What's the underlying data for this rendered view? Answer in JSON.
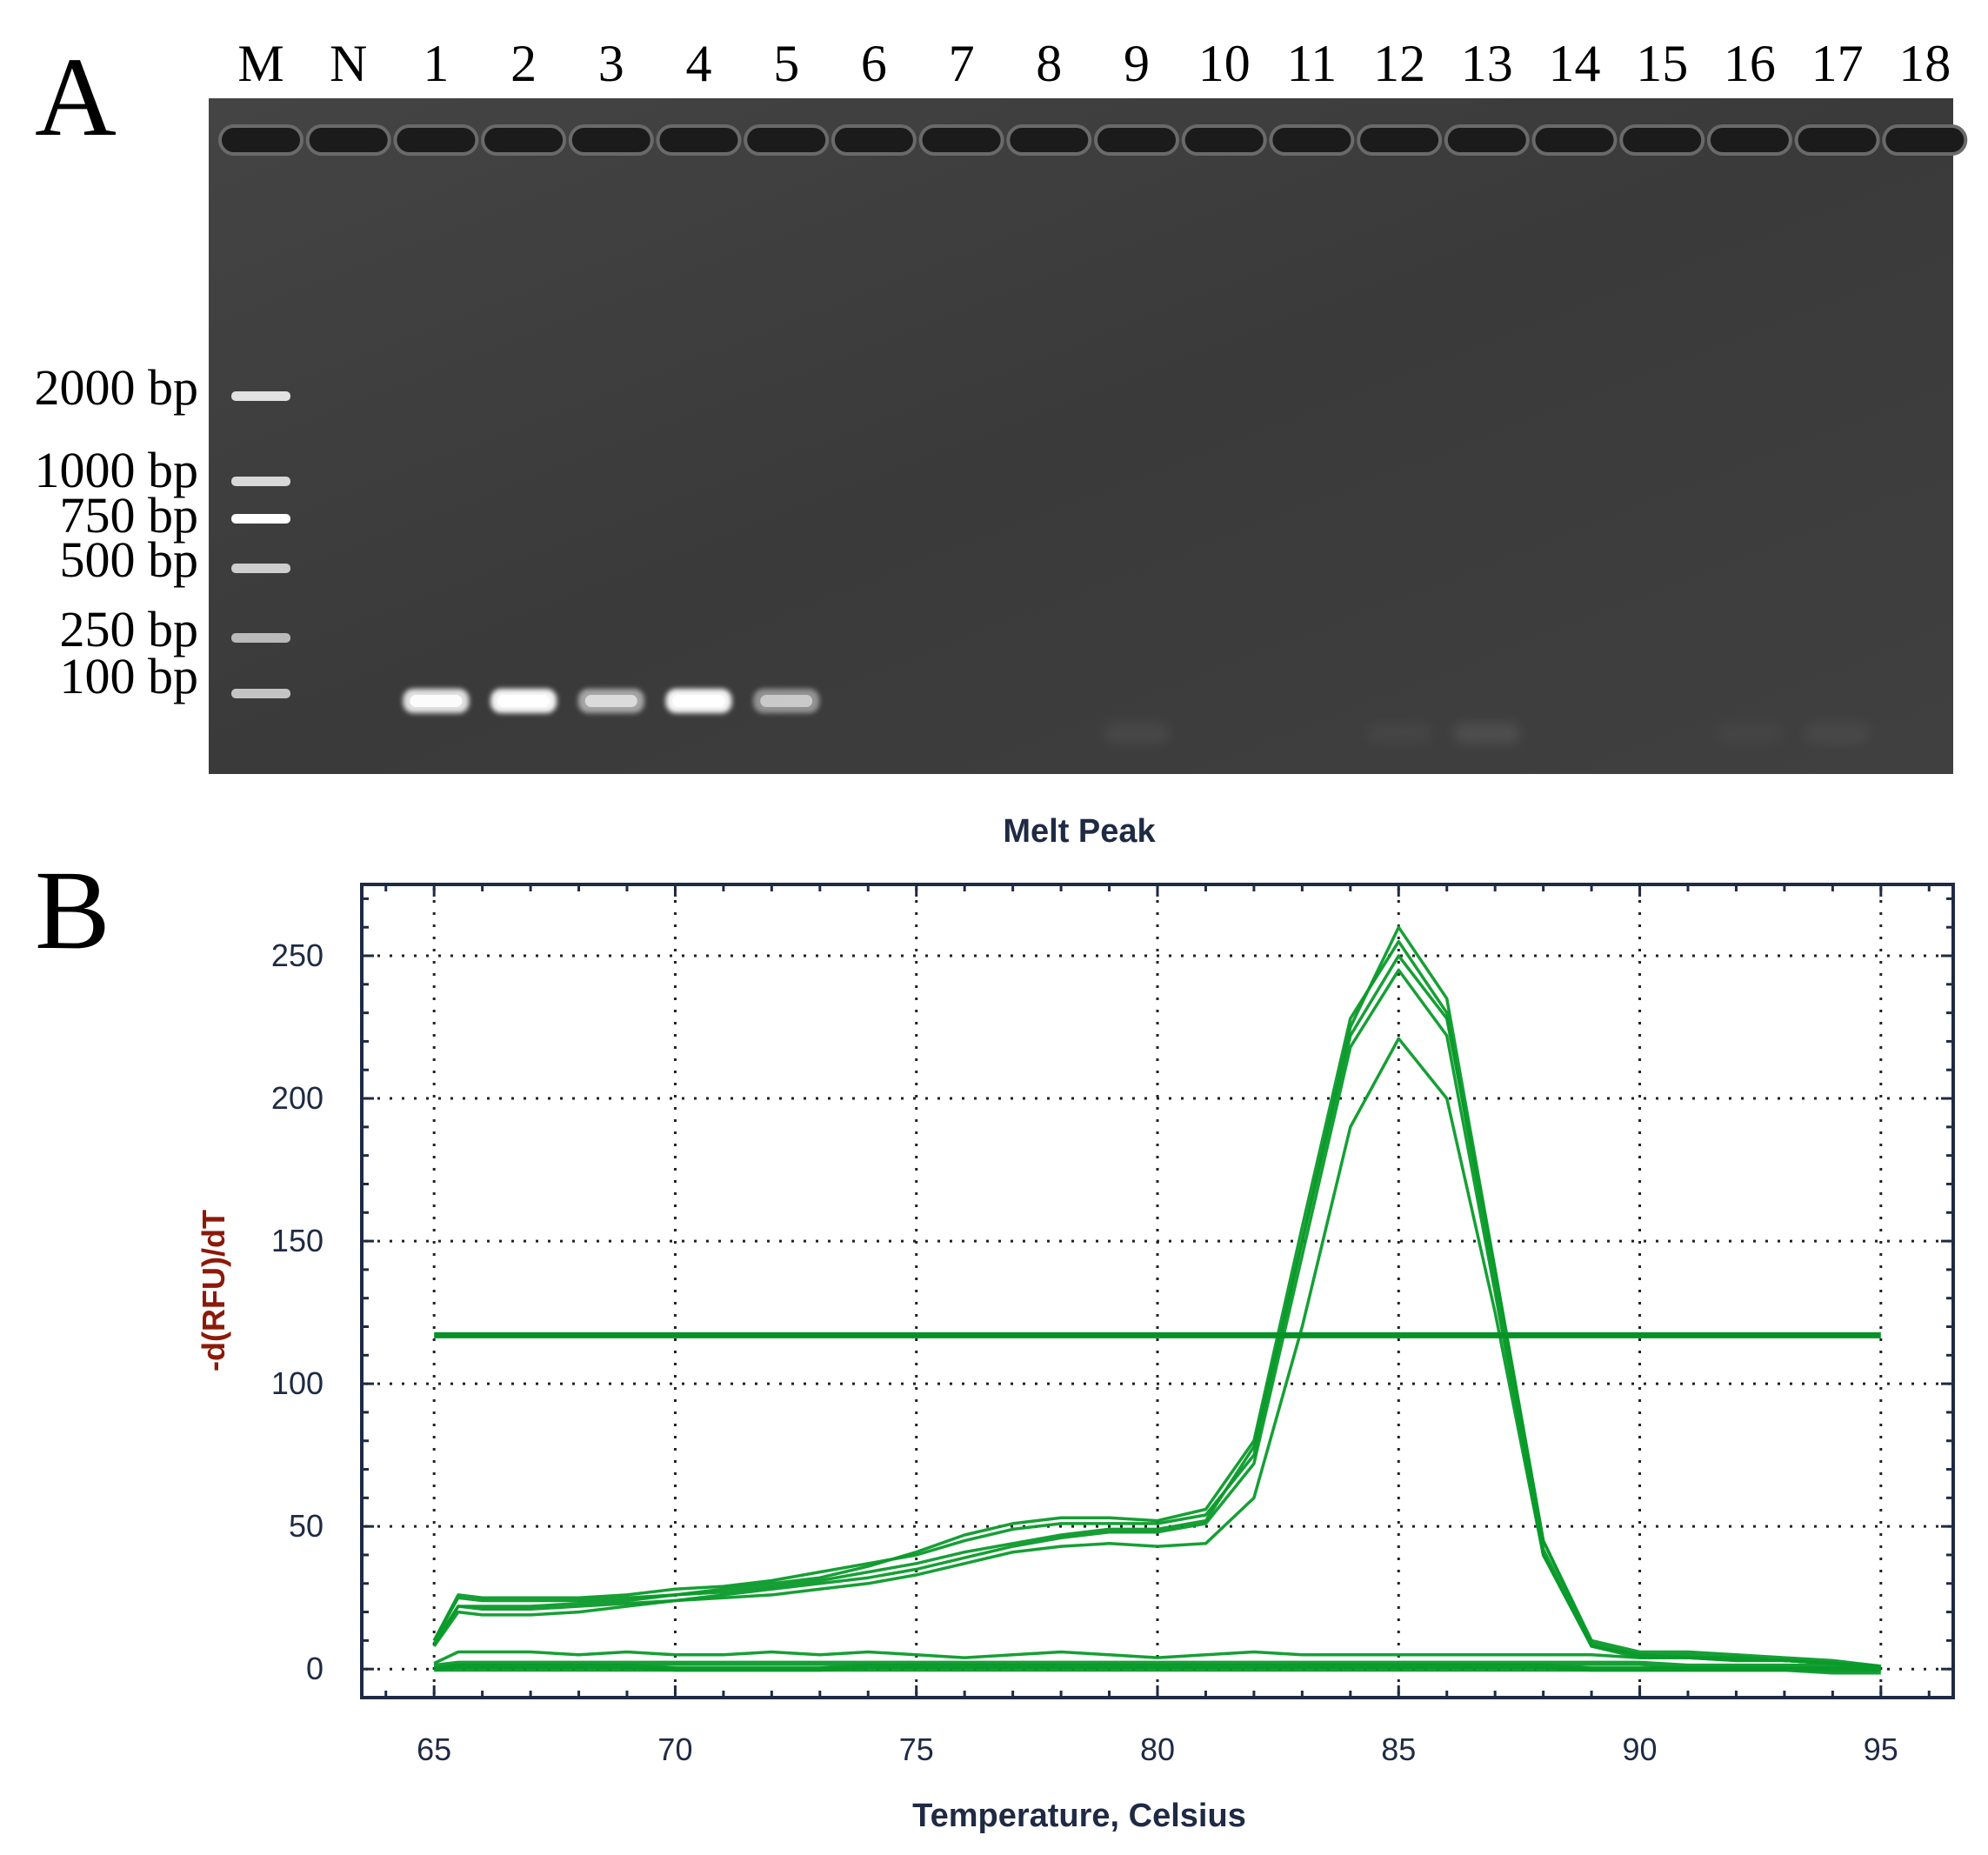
{
  "panel_a": {
    "label": "A",
    "lane_labels": [
      "M",
      "N",
      "1",
      "2",
      "3",
      "4",
      "5",
      "6",
      "7",
      "8",
      "9",
      "10",
      "11",
      "12",
      "13",
      "14",
      "15",
      "16",
      "17",
      "18"
    ],
    "marker_labels": [
      "2000 bp",
      "1000 bp",
      "750 bp",
      "500 bp",
      "250 bp",
      "100 bp"
    ],
    "marker_brightness": [
      0.85,
      0.8,
      1.0,
      0.75,
      0.65,
      0.7
    ],
    "sample_band_brightness": {
      "1": 0.85,
      "2": 0.95,
      "3": 0.55,
      "4": 0.95,
      "5": 0.45,
      "9": 0.12,
      "12": 0.08,
      "13": 0.18,
      "16": 0.06,
      "17": 0.1
    },
    "colors": {
      "gel_background": "#3a3a3a",
      "band": "#f2f2f2"
    }
  },
  "panel_b": {
    "label": "B",
    "colors": {
      "series": "#0a9a2a",
      "threshold": "#079227",
      "axis_label": "#8b1a0a",
      "title": "#1f2a44",
      "ticks": "#1f2a44"
    }
  },
  "chart_data": {
    "type": "line",
    "title": "Melt Peak",
    "xlabel": "Temperature, Celsius",
    "ylabel": "-d(RFU)/dT",
    "xlim": [
      63.5,
      96.5
    ],
    "ylim": [
      -10,
      275
    ],
    "xticks": [
      65,
      70,
      75,
      80,
      85,
      90,
      95
    ],
    "yticks": [
      0,
      50,
      100,
      150,
      200,
      250
    ],
    "grid": true,
    "threshold": 117,
    "x": [
      65,
      65.5,
      66,
      67,
      68,
      69,
      70,
      71,
      72,
      73,
      74,
      75,
      76,
      77,
      78,
      79,
      80,
      81,
      82,
      83,
      84,
      85,
      86,
      87,
      88,
      89,
      90,
      91,
      92,
      93,
      94,
      95
    ],
    "series": [
      {
        "values": [
          10,
          26,
          25,
          25,
          25,
          26,
          28,
          29,
          31,
          34,
          37,
          40,
          45,
          49,
          51,
          51,
          51,
          54,
          75,
          150,
          225,
          260,
          235,
          140,
          45,
          10,
          6,
          6,
          5,
          4,
          3,
          1
        ]
      },
      {
        "values": [
          10,
          25,
          24,
          24,
          24,
          25,
          26,
          28,
          30,
          32,
          36,
          41,
          47,
          51,
          53,
          53,
          52,
          56,
          80,
          155,
          228,
          255,
          230,
          135,
          42,
          8,
          5,
          5,
          4,
          3,
          2,
          1
        ]
      },
      {
        "values": [
          8,
          22,
          22,
          22,
          23,
          24,
          26,
          27,
          29,
          31,
          34,
          37,
          41,
          44,
          47,
          49,
          49,
          52,
          78,
          150,
          222,
          250,
          228,
          140,
          45,
          9,
          5,
          4,
          4,
          3,
          2,
          0
        ]
      },
      {
        "values": [
          9,
          22,
          21,
          21,
          22,
          23,
          24,
          26,
          28,
          30,
          32,
          35,
          39,
          43,
          46,
          48,
          48,
          51,
          72,
          145,
          218,
          245,
          222,
          132,
          40,
          8,
          5,
          4,
          4,
          3,
          2,
          0
        ]
      },
      {
        "values": [
          8,
          20,
          19,
          19,
          20,
          22,
          24,
          25,
          26,
          28,
          30,
          33,
          37,
          41,
          43,
          44,
          43,
          44,
          60,
          120,
          190,
          221,
          200,
          125,
          40,
          8,
          4,
          4,
          3,
          3,
          2,
          0
        ]
      },
      {
        "values": [
          2,
          6,
          6,
          6,
          5,
          6,
          5,
          5,
          6,
          5,
          6,
          5,
          4,
          5,
          6,
          5,
          4,
          5,
          6,
          5,
          5,
          5,
          5,
          5,
          5,
          5,
          4,
          4,
          3,
          3,
          2,
          1
        ]
      },
      {
        "values": [
          1,
          2,
          2,
          2,
          2,
          2,
          2,
          2,
          2,
          2,
          2,
          2,
          2,
          2,
          2,
          2,
          2,
          2,
          2,
          2,
          2,
          2,
          2,
          2,
          2,
          2,
          2,
          1,
          1,
          1,
          1,
          0
        ]
      },
      {
        "values": [
          0,
          1,
          1,
          1,
          1,
          1,
          0,
          0,
          0,
          0,
          1,
          1,
          1,
          1,
          1,
          1,
          1,
          1,
          1,
          1,
          1,
          1,
          1,
          1,
          1,
          0,
          0,
          0,
          0,
          0,
          -1,
          -1
        ]
      },
      {
        "values": [
          0,
          0,
          0,
          0,
          0,
          0,
          0,
          0,
          0,
          0,
          0,
          0,
          0,
          0,
          0,
          0,
          0,
          0,
          0,
          0,
          0,
          0,
          0,
          0,
          0,
          0,
          0,
          0,
          0,
          0,
          0,
          0
        ]
      }
    ]
  }
}
